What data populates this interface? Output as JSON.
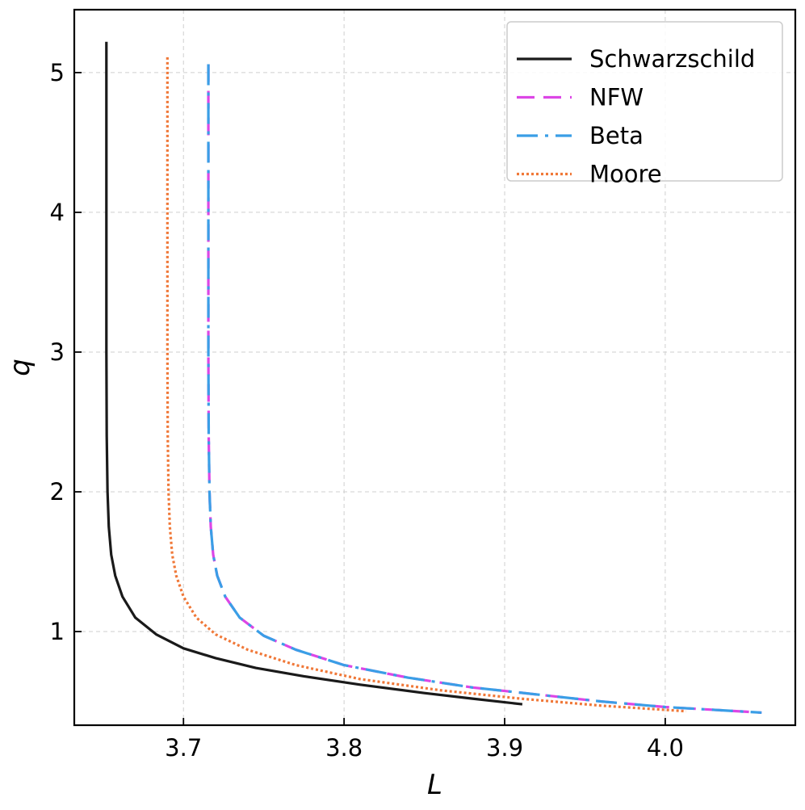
{
  "chart_data": {
    "type": "line",
    "xlabel": "L",
    "ylabel": "q",
    "xlim": [
      3.632,
      4.081
    ],
    "ylim": [
      0.33,
      5.45
    ],
    "xticks": [
      3.7,
      3.8,
      3.9,
      4.0
    ],
    "xtick_labels": [
      "3.7",
      "3.8",
      "3.9",
      "4.0"
    ],
    "yticks": [
      1,
      2,
      3,
      4,
      5
    ],
    "ytick_labels": [
      "1",
      "2",
      "3",
      "4",
      "5"
    ],
    "grid": true,
    "legend_position": "top-right",
    "series": [
      {
        "name": "Schwarzschild",
        "color": "#1a1a1a",
        "style": "solid",
        "x": [
          3.652,
          3.652,
          3.6522,
          3.6527,
          3.6535,
          3.655,
          3.6575,
          3.662,
          3.67,
          3.683,
          3.7,
          3.72,
          3.745,
          3.775,
          3.81,
          3.85,
          3.88,
          3.911
        ],
        "y": [
          5.22,
          3.0,
          2.4,
          2.0,
          1.75,
          1.55,
          1.4,
          1.25,
          1.1,
          0.98,
          0.88,
          0.81,
          0.74,
          0.68,
          0.62,
          0.56,
          0.52,
          0.48
        ]
      },
      {
        "name": "NFW",
        "color": "#dc46e6",
        "style": "dashed",
        "x": [
          3.7155,
          3.7155,
          3.7157,
          3.7162,
          3.717,
          3.7185,
          3.721,
          3.726,
          3.735,
          3.75,
          3.77,
          3.8,
          3.84,
          3.88,
          3.92,
          3.96,
          4.0,
          4.03,
          4.06
        ],
        "y": [
          5.06,
          3.0,
          2.4,
          2.0,
          1.75,
          1.55,
          1.4,
          1.25,
          1.1,
          0.97,
          0.87,
          0.76,
          0.67,
          0.6,
          0.55,
          0.5,
          0.46,
          0.44,
          0.42
        ]
      },
      {
        "name": "Beta",
        "color": "#3a9ee6",
        "style": "dashdot",
        "x": [
          3.7155,
          3.7155,
          3.7157,
          3.7162,
          3.717,
          3.7185,
          3.721,
          3.726,
          3.735,
          3.75,
          3.77,
          3.8,
          3.84,
          3.88,
          3.92,
          3.96,
          4.0,
          4.03,
          4.06
        ],
        "y": [
          5.06,
          3.0,
          2.4,
          2.0,
          1.75,
          1.55,
          1.4,
          1.25,
          1.1,
          0.97,
          0.87,
          0.76,
          0.67,
          0.6,
          0.55,
          0.5,
          0.46,
          0.44,
          0.42
        ]
      },
      {
        "name": "Moore",
        "color": "#f07838",
        "style": "dotted",
        "x": [
          3.69,
          3.69,
          3.6902,
          3.6907,
          3.6915,
          3.693,
          3.6955,
          3.7,
          3.708,
          3.72,
          3.74,
          3.77,
          3.81,
          3.86,
          3.91,
          3.96,
          4.013
        ],
        "y": [
          5.11,
          3.0,
          2.4,
          2.0,
          1.75,
          1.55,
          1.4,
          1.25,
          1.1,
          0.98,
          0.87,
          0.76,
          0.66,
          0.58,
          0.52,
          0.47,
          0.43
        ]
      }
    ]
  }
}
